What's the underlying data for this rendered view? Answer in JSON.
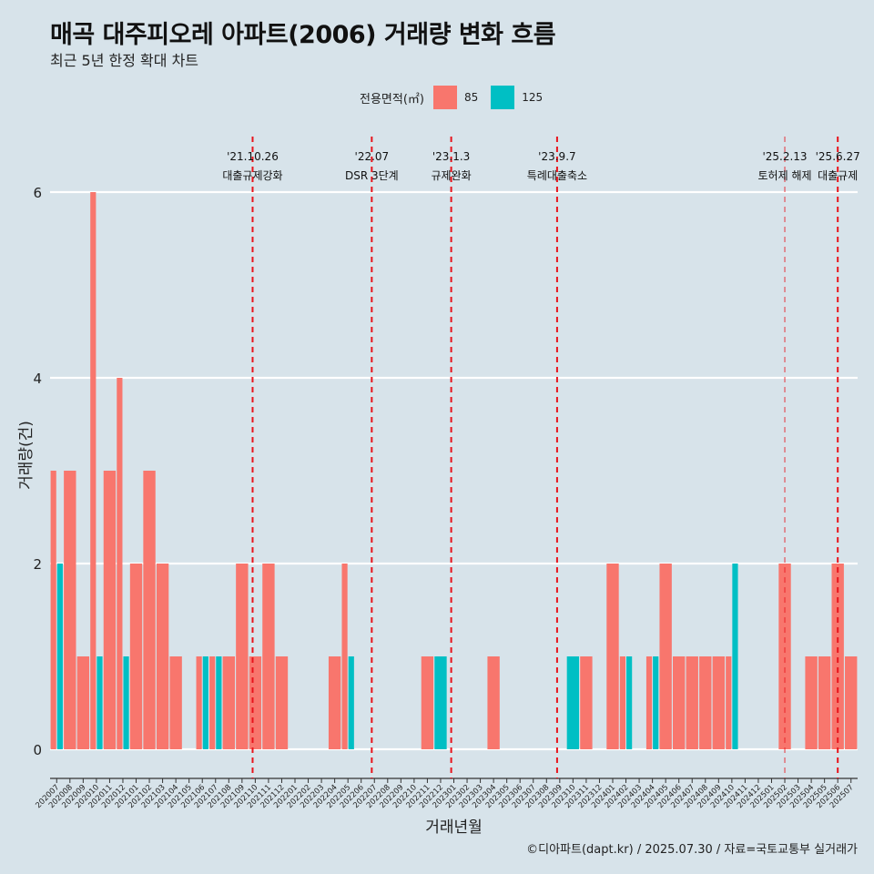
{
  "title": "매곡 대주피오레 아파트(2006) 거래량 변화 흐름",
  "subtitle": "최근 5년 한정 확대 차트",
  "caption": "©디아파트(dapt.kr) / 2025.07.30 / 자료=국토교통부 실거래가",
  "colors": {
    "background": "#d7e3ea",
    "s85": "#f8766d",
    "s125": "#00bfc4",
    "event_line": "#e8141c",
    "grid": "#ffffff"
  },
  "chart_data": {
    "type": "bar",
    "xlabel": "거래년월",
    "ylabel": "거래량(건)",
    "ylim": [
      0,
      6
    ],
    "yticks": [
      0,
      2,
      4,
      6
    ],
    "legend_title": "전용면적(㎡)",
    "legend_position": "top",
    "grid": true,
    "categories": [
      "202007",
      "202008",
      "202009",
      "202010",
      "202011",
      "202012",
      "202101",
      "202102",
      "202103",
      "202104",
      "202105",
      "202106",
      "202107",
      "202108",
      "202109",
      "202110",
      "202111",
      "202112",
      "202201",
      "202202",
      "202203",
      "202204",
      "202205",
      "202206",
      "202207",
      "202208",
      "202209",
      "202210",
      "202211",
      "202212",
      "202301",
      "202302",
      "202303",
      "202304",
      "202305",
      "202306",
      "202307",
      "202308",
      "202309",
      "202310",
      "202311",
      "202312",
      "202401",
      "202402",
      "202403",
      "202404",
      "202405",
      "202406",
      "202407",
      "202408",
      "202409",
      "202410",
      "202411",
      "202412",
      "202501",
      "202502",
      "202503",
      "202504",
      "202505",
      "202506",
      "202507"
    ],
    "series": [
      {
        "name": "85",
        "values": [
          3,
          3,
          1,
          6,
          3,
          4,
          2,
          3,
          2,
          1,
          0,
          1,
          1,
          1,
          2,
          1,
          2,
          1,
          0,
          0,
          0,
          1,
          2,
          0,
          0,
          0,
          0,
          0,
          1,
          0,
          0,
          0,
          0,
          1,
          0,
          0,
          0,
          0,
          0,
          0,
          1,
          0,
          2,
          1,
          0,
          1,
          2,
          1,
          1,
          1,
          1,
          1,
          0,
          0,
          0,
          2,
          0,
          1,
          1,
          2,
          1
        ]
      },
      {
        "name": "125",
        "values": [
          2,
          0,
          0,
          1,
          0,
          1,
          0,
          0,
          0,
          0,
          0,
          1,
          1,
          0,
          0,
          0,
          0,
          0,
          0,
          0,
          0,
          0,
          1,
          0,
          0,
          0,
          0,
          0,
          0,
          1,
          0,
          0,
          0,
          0,
          0,
          0,
          0,
          0,
          0,
          1,
          0,
          0,
          0,
          1,
          0,
          1,
          0,
          0,
          0,
          0,
          0,
          2,
          0,
          0,
          0,
          0,
          0,
          0,
          0,
          0,
          0
        ]
      }
    ],
    "events": [
      {
        "date": "'21.10.26",
        "label": "대출규제강화",
        "pos": 15.3
      },
      {
        "date": "'22.07",
        "label": "DSR 3단계",
        "pos": 24.3
      },
      {
        "date": "'23.1.3",
        "label": "규제완화",
        "pos": 30.3
      },
      {
        "date": "'23.9.7",
        "label": "특례대출축소",
        "pos": 38.3
      },
      {
        "date": "'25.2.13",
        "label": "토허제 해제",
        "pos": 55.5
      },
      {
        "date": "'25.6.27",
        "label": "대출규제",
        "pos": 59.5
      }
    ]
  }
}
